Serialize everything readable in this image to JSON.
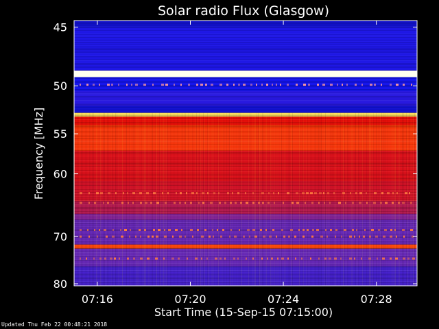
{
  "chart_data": {
    "type": "heatmap",
    "title": "Solar radio Flux (Glasgow)",
    "xlabel": "Start Time (15-Sep-15 07:15:00)",
    "ylabel": "Frequency [MHz]",
    "x_ticks": [
      "07:16",
      "07:20",
      "07:24",
      "07:28"
    ],
    "x_tick_minutes": [
      1,
      5,
      9,
      13
    ],
    "xlim_minutes": [
      0,
      14.75
    ],
    "y_ticks": [
      45,
      50,
      55,
      60,
      70,
      80
    ],
    "ylim": [
      44.5,
      80.5
    ],
    "y_scale": "reciprocal",
    "colormap": "blue-red-yellow-white",
    "frequency_bands": [
      {
        "from": 44.5,
        "to": 45.0,
        "level": 0.15
      },
      {
        "from": 45.0,
        "to": 48.6,
        "level": 0.22
      },
      {
        "from": 48.6,
        "to": 49.2,
        "level": 1.0
      },
      {
        "from": 49.2,
        "to": 50.5,
        "level": 0.2
      },
      {
        "from": 50.5,
        "to": 52.0,
        "level": 0.24
      },
      {
        "from": 52.0,
        "to": 52.7,
        "level": 0.15
      },
      {
        "from": 52.7,
        "to": 53.1,
        "level": 0.92
      },
      {
        "from": 53.1,
        "to": 54.0,
        "level": 0.62
      },
      {
        "from": 54.0,
        "to": 57.0,
        "level": 0.7
      },
      {
        "from": 57.0,
        "to": 61.0,
        "level": 0.58
      },
      {
        "from": 61.0,
        "to": 64.0,
        "level": 0.55
      },
      {
        "from": 64.0,
        "to": 66.0,
        "level": 0.48
      },
      {
        "from": 66.0,
        "to": 67.0,
        "level": 0.4
      },
      {
        "from": 67.0,
        "to": 71.5,
        "level": 0.36
      },
      {
        "from": 71.5,
        "to": 72.3,
        "level": 0.74
      },
      {
        "from": 72.3,
        "to": 76.0,
        "level": 0.36
      },
      {
        "from": 76.0,
        "to": 80.5,
        "level": 0.3
      }
    ],
    "grid": false,
    "legend": "none"
  },
  "footer": {
    "updated": "Updated Thu Feb 22 00:48:21 2018"
  },
  "colors": {
    "background": "#000000",
    "text": "#ffffff"
  }
}
